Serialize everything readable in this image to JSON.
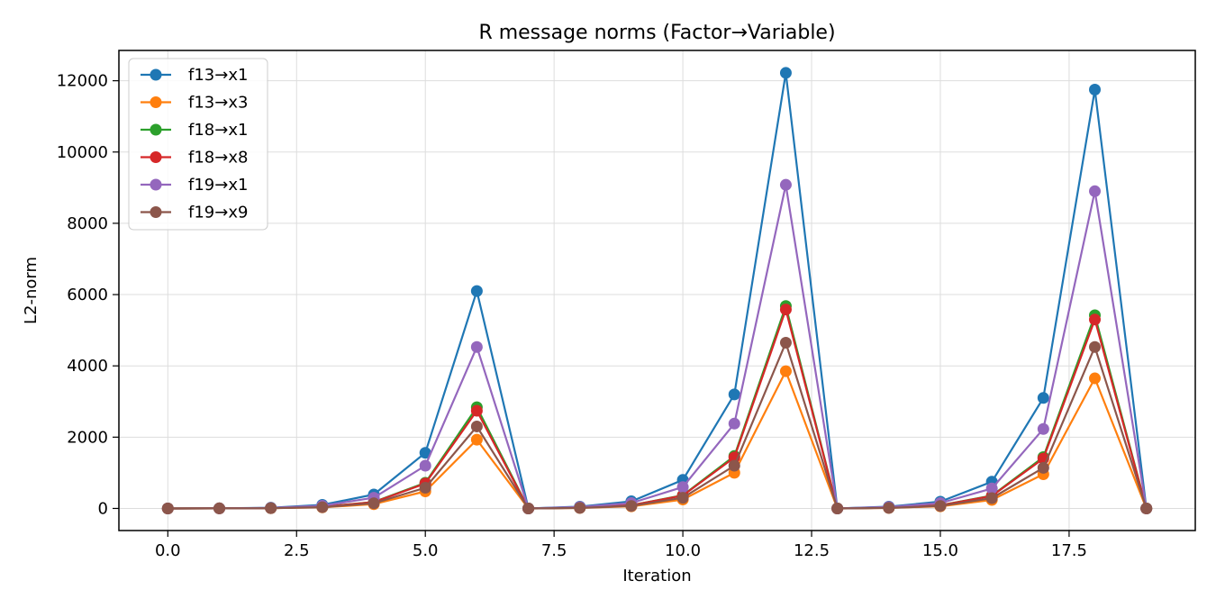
{
  "chart_data": {
    "type": "line",
    "title": "R message norms (Factor→Variable)",
    "xlabel": "Iteration",
    "ylabel": "L2-norm",
    "xlim": [
      -0.95,
      19.95
    ],
    "ylim": [
      -620,
      12850
    ],
    "xticks": [
      0.0,
      2.5,
      5.0,
      7.5,
      10.0,
      12.5,
      15.0,
      17.5
    ],
    "xtick_labels": [
      "0.0",
      "2.5",
      "5.0",
      "7.5",
      "10.0",
      "12.5",
      "15.0",
      "17.5"
    ],
    "yticks": [
      0,
      2000,
      4000,
      6000,
      8000,
      10000,
      12000
    ],
    "ytick_labels": [
      "0",
      "2000",
      "4000",
      "6000",
      "8000",
      "10000",
      "12000"
    ],
    "grid": true,
    "legend_position": "top-left",
    "x": [
      0,
      1,
      2,
      3,
      4,
      5,
      6,
      7,
      8,
      9,
      10,
      11,
      12,
      13,
      14,
      15,
      16,
      17,
      18,
      19
    ],
    "series": [
      {
        "name": "f13→x1",
        "color": "#1f77b4",
        "values": [
          0,
          3,
          20,
          100,
          390,
          1560,
          6100,
          0,
          50,
          200,
          800,
          3200,
          12220,
          0,
          50,
          190,
          750,
          3100,
          11750,
          0
        ]
      },
      {
        "name": "f13→x3",
        "color": "#ff7f0e",
        "values": [
          0,
          1,
          8,
          30,
          120,
          480,
          1930,
          0,
          15,
          60,
          250,
          1000,
          3850,
          0,
          15,
          60,
          240,
          960,
          3650,
          0
        ]
      },
      {
        "name": "f18→x1",
        "color": "#2ca02c",
        "values": [
          0,
          1,
          10,
          45,
          180,
          720,
          2840,
          0,
          20,
          90,
          370,
          1470,
          5680,
          0,
          20,
          90,
          360,
          1440,
          5420,
          0
        ]
      },
      {
        "name": "f18→x8",
        "color": "#d62728",
        "values": [
          0,
          1,
          10,
          45,
          175,
          700,
          2740,
          0,
          20,
          90,
          360,
          1430,
          5580,
          0,
          20,
          85,
          350,
          1400,
          5300,
          0
        ]
      },
      {
        "name": "f19→x1",
        "color": "#9467bd",
        "values": [
          0,
          2,
          15,
          75,
          300,
          1200,
          4530,
          0,
          40,
          150,
          600,
          2380,
          9080,
          0,
          40,
          150,
          560,
          2230,
          8900,
          0
        ]
      },
      {
        "name": "f19→x9",
        "color": "#8c564b",
        "values": [
          0,
          1,
          8,
          35,
          145,
          580,
          2300,
          0,
          15,
          70,
          300,
          1200,
          4650,
          0,
          15,
          70,
          290,
          1140,
          4530,
          0
        ]
      }
    ]
  }
}
